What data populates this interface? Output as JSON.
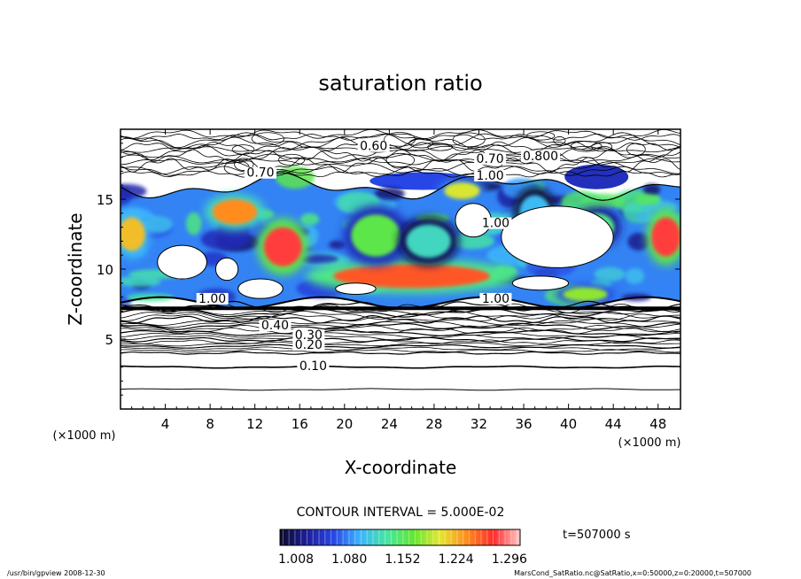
{
  "chart_data": {
    "type": "contour",
    "title": "saturation ratio",
    "xlabel": "X-coordinate",
    "ylabel": "Z-coordinate",
    "x_unit": "(×1000 m)",
    "y_unit": "(×1000 m)",
    "xlim": [
      0,
      50
    ],
    "ylim": [
      0,
      20
    ],
    "x_ticks": [
      4,
      8,
      12,
      16,
      20,
      24,
      28,
      32,
      36,
      40,
      44,
      48
    ],
    "y_ticks": [
      5,
      10,
      15
    ],
    "contour_interval_label": "CONTOUR INTERVAL = 5.000E-02",
    "time_label": "t=507000 s",
    "colorbar": {
      "min": 1.008,
      "max": 1.332,
      "tick_labels": [
        "1.008",
        "1.080",
        "1.152",
        "1.224",
        "1.296"
      ],
      "colors": [
        "#0a0a2a",
        "#1e1e9a",
        "#2846e6",
        "#3cb4ff",
        "#46e6a0",
        "#64e632",
        "#e6e632",
        "#ff8c1e",
        "#ff2d2d",
        "#ffc8c8"
      ]
    },
    "contour_labels": [
      {
        "text": "0.60",
        "x": 22.6,
        "y": 18.5
      },
      {
        "text": "0.70",
        "x": 33.0,
        "y": 17.6
      },
      {
        "text": "0.800",
        "x": 37.5,
        "y": 17.8
      },
      {
        "text": "1.00",
        "x": 33.0,
        "y": 16.4
      },
      {
        "text": "0.70",
        "x": 12.5,
        "y": 16.6
      },
      {
        "text": "1.00",
        "x": 33.5,
        "y": 13.0
      },
      {
        "text": "1.00",
        "x": 33.5,
        "y": 7.6
      },
      {
        "text": "1.00",
        "x": 8.2,
        "y": 7.6
      },
      {
        "text": "0.40",
        "x": 13.8,
        "y": 5.7
      },
      {
        "text": "0.30",
        "x": 16.8,
        "y": 5.0
      },
      {
        "text": "0.20",
        "x": 16.8,
        "y": 4.3
      },
      {
        "text": "0.10",
        "x": 17.2,
        "y": 2.8
      }
    ],
    "cloud_regions": [
      {
        "value": 1.3,
        "x": 14.5,
        "y": 11.6,
        "rx": 1.7,
        "ry": 1.4
      },
      {
        "value": 1.28,
        "x": 26.0,
        "y": 9.5,
        "rx": 7.0,
        "ry": 0.85
      },
      {
        "value": 1.26,
        "x": 10.2,
        "y": 14.1,
        "rx": 2.0,
        "ry": 0.9
      },
      {
        "value": 1.3,
        "x": 48.7,
        "y": 12.3,
        "rx": 1.3,
        "ry": 1.4
      },
      {
        "value": 1.24,
        "x": 1.0,
        "y": 12.5,
        "rx": 1.2,
        "ry": 1.2
      },
      {
        "value": 1.2,
        "x": 41.5,
        "y": 8.2,
        "rx": 2.0,
        "ry": 0.5
      },
      {
        "value": 1.22,
        "x": 30.5,
        "y": 15.6,
        "rx": 1.6,
        "ry": 0.6
      },
      {
        "value": 1.18,
        "x": 22.8,
        "y": 12.4,
        "rx": 2.2,
        "ry": 1.5
      },
      {
        "value": 1.16,
        "x": 42.5,
        "y": 13.0,
        "rx": 1.6,
        "ry": 1.0
      },
      {
        "value": 1.14,
        "x": 27.5,
        "y": 12.0,
        "rx": 2.0,
        "ry": 1.2
      },
      {
        "value": 1.12,
        "x": 37.0,
        "y": 14.0,
        "rx": 1.4,
        "ry": 1.3
      }
    ],
    "footer_left": "/usr/bin/gpview   2008-12-30",
    "footer_right": "MarsCond_SatRatio.nc@SatRatio,x=0:50000,z=0:20000,t=507000"
  }
}
